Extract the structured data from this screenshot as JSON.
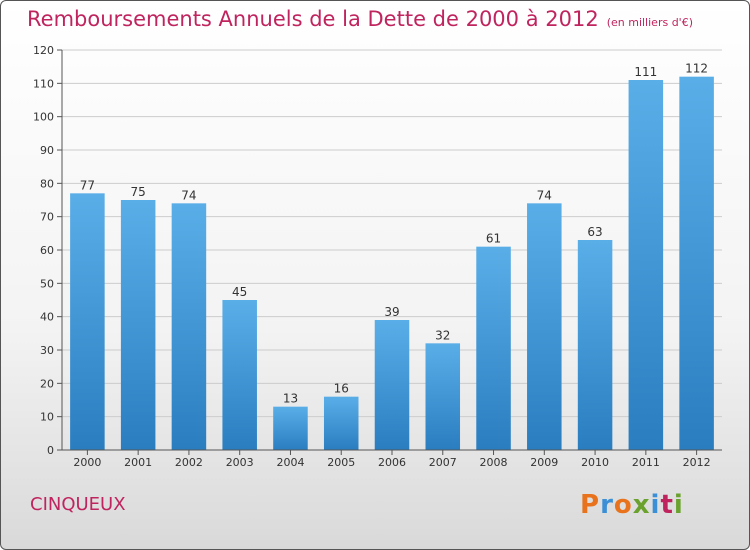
{
  "title": "Remboursements Annuels de la Dette de 2000 à 2012",
  "subtitle": "(en milliers d'€)",
  "town": "CINQUEUX",
  "logo": {
    "letters": [
      "P",
      "r",
      "o",
      "x",
      "i",
      "t",
      "i"
    ],
    "colors": [
      "#e8731c",
      "#3a8fd6",
      "#e8731c",
      "#6aa22d",
      "#3a8fd6",
      "#c0245e",
      "#6aa22d"
    ]
  },
  "colors": {
    "bar_light": "#5aaee8",
    "bar_dark": "#2a7ec0",
    "title": "#c0245e"
  },
  "chart_data": {
    "type": "bar",
    "categories": [
      "2000",
      "2001",
      "2002",
      "2003",
      "2004",
      "2005",
      "2006",
      "2007",
      "2008",
      "2009",
      "2010",
      "2011",
      "2012"
    ],
    "values": [
      77,
      75,
      74,
      45,
      13,
      16,
      39,
      32,
      61,
      74,
      63,
      111,
      112
    ],
    "title": "Remboursements Annuels de la Dette de 2000 à 2012",
    "xlabel": "",
    "ylabel": "",
    "ylim": [
      0,
      120
    ],
    "yticks": [
      0,
      10,
      20,
      30,
      40,
      50,
      60,
      70,
      80,
      90,
      100,
      110,
      120
    ],
    "grid": true,
    "data_labels": true
  }
}
